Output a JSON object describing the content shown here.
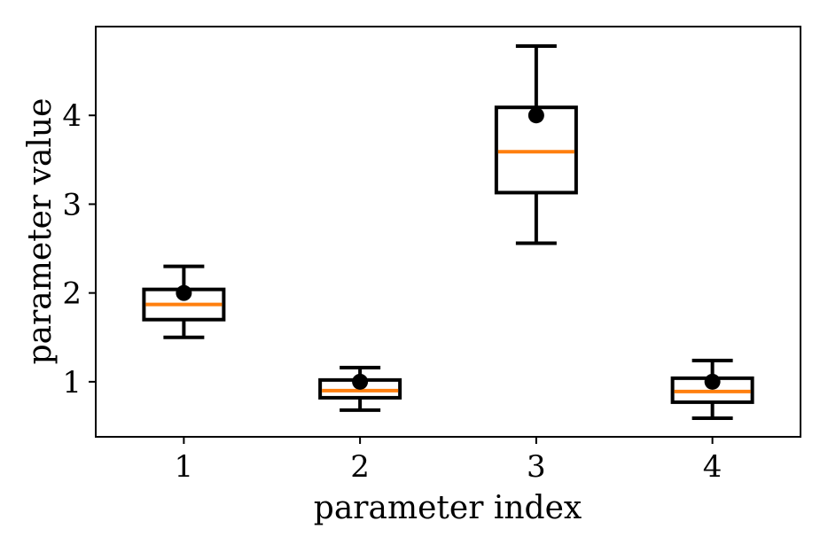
{
  "chart_data": {
    "type": "boxplot",
    "xlabel": "parameter index",
    "ylabel": "parameter value",
    "categories": [
      "1",
      "2",
      "3",
      "4"
    ],
    "yticks": [
      1,
      2,
      3,
      4
    ],
    "ylim": [
      0.38,
      5.0
    ],
    "xlim": [
      0.5,
      4.5
    ],
    "grid": false,
    "colors": {
      "box": "#000000",
      "median": "#ff7f0e",
      "true_value_marker": "#000000"
    },
    "boxes": [
      {
        "category": "1",
        "whisker_low": 1.5,
        "q1": 1.7,
        "median": 1.87,
        "q3": 2.04,
        "whisker_high": 2.3,
        "marker": 2.0
      },
      {
        "category": "2",
        "whisker_low": 0.68,
        "q1": 0.82,
        "median": 0.9,
        "q3": 1.02,
        "whisker_high": 1.16,
        "marker": 1.0
      },
      {
        "category": "3",
        "whisker_low": 2.56,
        "q1": 3.13,
        "median": 3.59,
        "q3": 4.09,
        "whisker_high": 4.78,
        "marker": 4.0
      },
      {
        "category": "4",
        "whisker_low": 0.59,
        "q1": 0.77,
        "median": 0.89,
        "q3": 1.04,
        "whisker_high": 1.24,
        "marker": 1.0
      }
    ]
  }
}
